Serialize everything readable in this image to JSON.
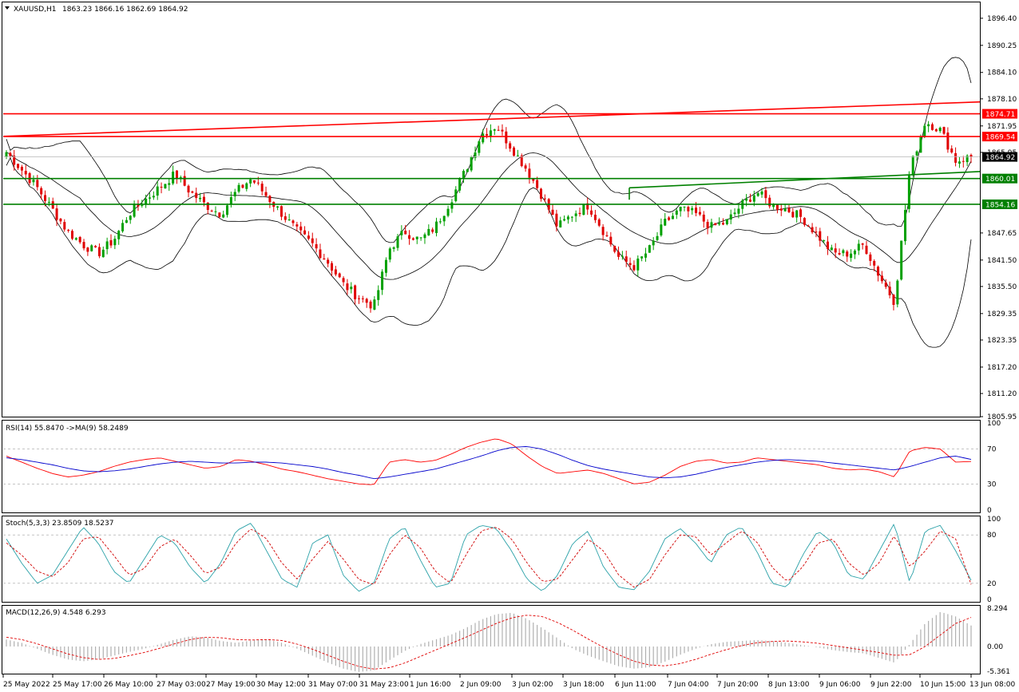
{
  "header": {
    "symbol": "XAUUSD,H1",
    "ohlc": "1863.23 1866.16 1862.69 1864.92"
  },
  "colors": {
    "bull": "#00a000",
    "bear": "#e00000",
    "resistance": "#ff0000",
    "support": "#008000",
    "bands": "#000000",
    "rsi": "#ff0000",
    "rsi_ma": "#0000cc",
    "stoch_main": "#2aa1a8",
    "stoch_signal": "#d00000",
    "macd_hist": "#b0b0b0",
    "macd_signal": "#e00000"
  },
  "chart_data": [
    {
      "type": "candlestick",
      "name": "price",
      "ylim": [
        1805.95,
        1900.0
      ],
      "y_ticks": [
        "1896.40",
        "1890.25",
        "1884.10",
        "1878.10",
        "1871.95",
        "1865.95",
        "1847.65",
        "1841.50",
        "1835.50",
        "1829.35",
        "1823.35",
        "1817.20",
        "1811.20",
        "1805.95"
      ],
      "price_labels": [
        {
          "text": "1874.71",
          "kind": "resistance"
        },
        {
          "text": "1869.54",
          "kind": "resistance"
        },
        {
          "text": "1864.92",
          "kind": "current"
        },
        {
          "text": "1860.01",
          "kind": "support"
        },
        {
          "text": "1854.16",
          "kind": "support"
        }
      ],
      "horizontal_levels": [
        1874.71,
        1869.54,
        1860.01,
        1854.16
      ],
      "x_labels": [
        "25 May 2022",
        "25 May 17:00",
        "26 May 10:00",
        "27 May 03:00",
        "27 May 19:00",
        "30 May 12:00",
        "31 May 07:00",
        "31 May 23:00",
        "1 Jun 16:00",
        "2 Jun 09:00",
        "3 Jun 02:00",
        "3 Jun 18:00",
        "6 Jun 11:00",
        "7 Jun 04:00",
        "7 Jun 20:00",
        "8 Jun 13:00",
        "9 Jun 06:00",
        "9 Jun 22:00",
        "10 Jun 15:00",
        "13 Jun 08:00"
      ],
      "anchor_closes": [
        1866,
        1862,
        1858,
        1853,
        1848,
        1845,
        1843,
        1846,
        1852,
        1855,
        1858,
        1861,
        1857,
        1854,
        1852,
        1857,
        1860,
        1856,
        1852,
        1848,
        1845,
        1841,
        1836,
        1833,
        1831,
        1844,
        1848,
        1846,
        1849,
        1855,
        1862,
        1870,
        1872,
        1867,
        1862,
        1856,
        1849,
        1852,
        1854,
        1848,
        1842,
        1840,
        1844,
        1850,
        1853,
        1852,
        1849,
        1850,
        1854,
        1857,
        1854,
        1853,
        1851,
        1847,
        1843,
        1843,
        1845,
        1838,
        1832,
        1862,
        1873,
        1871,
        1864,
        1864.92
      ],
      "bollinger": {
        "period": 20,
        "deviations": 2
      }
    },
    {
      "type": "line",
      "name": "RSI(14) 55.8470 ->MA(9) 58.2489",
      "ylim": [
        0,
        100
      ],
      "y_ticks": [
        "100",
        "70",
        "30",
        "0"
      ],
      "levels": [
        70,
        30
      ],
      "series": [
        {
          "name": "RSI(14)",
          "values": [
            62,
            55,
            48,
            42,
            38,
            40,
            44,
            50,
            55,
            58,
            60,
            56,
            52,
            48,
            50,
            58,
            56,
            52,
            47,
            44,
            40,
            36,
            33,
            30,
            29,
            55,
            58,
            55,
            57,
            64,
            72,
            78,
            82,
            76,
            62,
            50,
            42,
            44,
            46,
            42,
            36,
            30,
            32,
            40,
            50,
            56,
            58,
            54,
            55,
            60,
            58,
            56,
            54,
            52,
            48,
            46,
            47,
            44,
            38,
            68,
            72,
            70,
            55,
            55.8
          ]
        },
        {
          "name": "MA(9)",
          "values": [
            60,
            58,
            55,
            52,
            48,
            45,
            44,
            45,
            47,
            50,
            53,
            55,
            56,
            55,
            54,
            54,
            55,
            55,
            54,
            52,
            50,
            47,
            43,
            40,
            36,
            38,
            41,
            44,
            47,
            52,
            57,
            62,
            68,
            72,
            73,
            70,
            64,
            57,
            51,
            47,
            44,
            41,
            38,
            37,
            38,
            41,
            45,
            49,
            52,
            55,
            57,
            58,
            57,
            56,
            54,
            52,
            50,
            48,
            46,
            50,
            55,
            60,
            62,
            58.2
          ]
        }
      ]
    },
    {
      "type": "line",
      "name": "Stoch(5,3,3) 23.8509 18.5237",
      "ylim": [
        0,
        100
      ],
      "y_ticks": [
        "100",
        "80",
        "20",
        "0"
      ],
      "levels": [
        80,
        20
      ],
      "series": [
        {
          "name": "%K",
          "values": [
            75,
            45,
            20,
            30,
            60,
            90,
            70,
            35,
            20,
            50,
            80,
            70,
            40,
            20,
            45,
            85,
            95,
            60,
            25,
            15,
            70,
            80,
            30,
            10,
            20,
            75,
            90,
            50,
            15,
            20,
            80,
            92,
            88,
            60,
            25,
            10,
            30,
            70,
            85,
            40,
            15,
            12,
            35,
            75,
            88,
            70,
            45,
            80,
            90,
            60,
            20,
            15,
            55,
            85,
            70,
            30,
            25,
            60,
            95,
            20,
            85,
            92,
            60,
            23.9
          ]
        },
        {
          "name": "%D",
          "values": [
            70,
            55,
            35,
            28,
            45,
            75,
            78,
            55,
            30,
            38,
            65,
            75,
            55,
            32,
            40,
            70,
            88,
            75,
            45,
            25,
            50,
            72,
            50,
            25,
            18,
            55,
            80,
            65,
            35,
            20,
            55,
            85,
            90,
            75,
            45,
            22,
            25,
            50,
            75,
            60,
            30,
            15,
            25,
            55,
            80,
            78,
            55,
            70,
            85,
            72,
            40,
            22,
            40,
            70,
            75,
            45,
            30,
            45,
            80,
            40,
            60,
            85,
            75,
            18.5
          ]
        }
      ]
    },
    {
      "type": "bar",
      "name": "MACD(12,26,9) 4.548 6.293",
      "ylim": [
        -5.361,
        8.294
      ],
      "y_ticks": [
        "8.294",
        "0.00",
        "-5.361"
      ],
      "series": [
        {
          "name": "MACD",
          "values": [
            1.5,
            0.8,
            -0.5,
            -1.8,
            -2.8,
            -3.2,
            -2.8,
            -2.0,
            -1.2,
            -0.5,
            0.5,
            1.5,
            2.2,
            2.0,
            1.2,
            0.8,
            1.3,
            1.5,
            0.8,
            -0.5,
            -2.0,
            -3.5,
            -4.8,
            -5.5,
            -5.2,
            -3.0,
            -1.0,
            0.5,
            1.5,
            2.5,
            4.0,
            5.8,
            7.0,
            7.3,
            6.0,
            4.0,
            1.8,
            -0.5,
            -2.0,
            -3.2,
            -4.3,
            -4.8,
            -4.5,
            -3.3,
            -1.8,
            -0.5,
            0.5,
            1.0,
            1.2,
            1.4,
            1.2,
            0.8,
            0.3,
            -0.2,
            -0.8,
            -1.2,
            -1.5,
            -2.5,
            -3.5,
            0.5,
            5.0,
            7.5,
            6.5,
            4.548
          ]
        },
        {
          "name": "Signal",
          "values": [
            2.0,
            1.5,
            0.6,
            -0.5,
            -1.6,
            -2.4,
            -2.8,
            -2.6,
            -2.0,
            -1.3,
            -0.4,
            0.6,
            1.5,
            2.0,
            1.9,
            1.5,
            1.4,
            1.5,
            1.3,
            0.5,
            -0.6,
            -1.9,
            -3.2,
            -4.3,
            -4.9,
            -4.6,
            -3.6,
            -2.2,
            -0.8,
            0.6,
            2.0,
            3.5,
            5.0,
            6.2,
            6.8,
            6.5,
            5.2,
            3.5,
            1.6,
            -0.2,
            -1.8,
            -3.2,
            -4.0,
            -4.2,
            -3.7,
            -2.8,
            -1.7,
            -0.7,
            0.2,
            0.8,
            1.1,
            1.2,
            1.0,
            0.7,
            0.2,
            -0.3,
            -0.8,
            -1.3,
            -1.9,
            -1.8,
            0.0,
            2.5,
            5.0,
            6.293
          ]
        }
      ]
    }
  ]
}
